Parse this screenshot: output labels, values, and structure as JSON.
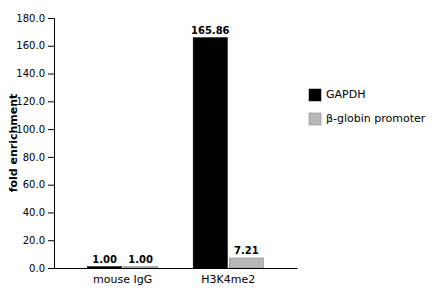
{
  "chart_data": {
    "type": "bar",
    "categories": [
      "mouse IgG",
      "H3K4me2"
    ],
    "series": [
      {
        "name": "GAPDH",
        "color": "#000000",
        "values": [
          1.0,
          165.86
        ],
        "value_labels": [
          "1.00",
          "165.86"
        ]
      },
      {
        "name": "β-globin promoter",
        "color": "#b8b8b8",
        "values": [
          1.0,
          7.21
        ],
        "value_labels": [
          "1.00",
          "7.21"
        ]
      }
    ],
    "ylabel": "fold enrichment",
    "ylim": [
      0,
      180.0
    ],
    "yticks": [
      {
        "value": 0,
        "label": "0.0"
      },
      {
        "value": 20,
        "label": "20.0"
      },
      {
        "value": 40,
        "label": "40.0"
      },
      {
        "value": 60,
        "label": "60.0"
      },
      {
        "value": 80,
        "label": "80.0"
      },
      {
        "value": 100,
        "label": "100.0"
      },
      {
        "value": 120,
        "label": "120.0"
      },
      {
        "value": 140,
        "label": "140.0"
      },
      {
        "value": 160,
        "label": "160.0"
      },
      {
        "value": 180,
        "label": "180.0"
      }
    ],
    "data_labels": true,
    "legend": "right",
    "grid": false
  }
}
